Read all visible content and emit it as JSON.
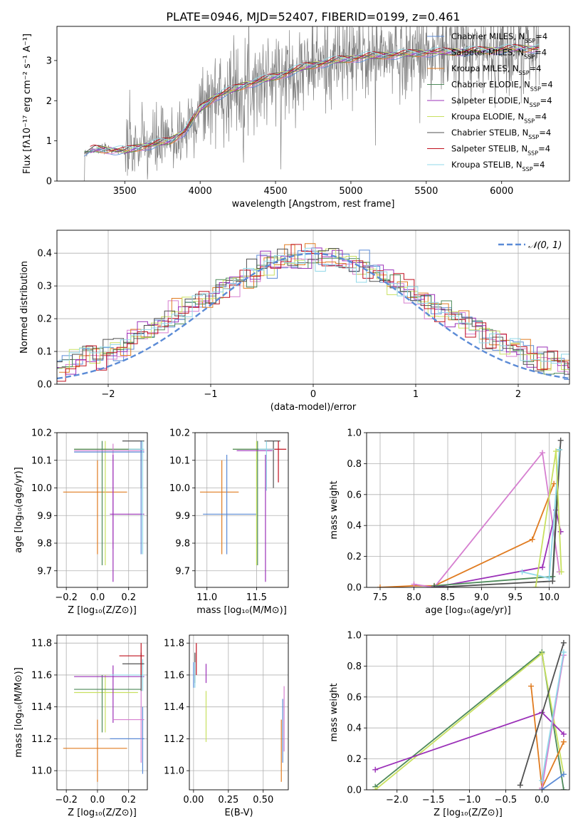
{
  "figure_title": "PLATE=0946, MJD=52407, FIBERID=0199, z=0.461",
  "colors": {
    "Chabrier MILES": "#5b8bd6",
    "Salpeter MILES": "#d67fd0",
    "Kroupa MILES": "#e07b20",
    "Chabrier ELODIE": "#4d8a5a",
    "Salpeter ELODIE": "#9b30b8",
    "Kroupa ELODIE": "#c8e060",
    "Chabrier STELIB": "#505050",
    "Salpeter STELIB": "#c0101e",
    "Kroupa STELIB": "#90d8e8",
    "gauss": "#5b8bd6",
    "data": "#808080"
  },
  "chart_data": [
    {
      "id": "spectrum",
      "type": "line",
      "title": "PLATE=0946, MJD=52407, FIBERID=0199, z=0.461",
      "xlabel": "wavelength [Angstrom, rest frame]",
      "ylabel": "Flux [fλ10⁻¹⁷ erg cm⁻² s⁻¹ A⁻¹]",
      "xlim": [
        3050,
        6450
      ],
      "ylim": [
        0,
        3.85
      ],
      "xticks": [
        3500,
        4000,
        4500,
        5000,
        5500,
        6000
      ],
      "yticks": [
        0,
        1,
        2,
        3
      ],
      "grid": false,
      "legend_position": "top-right",
      "legend": [
        {
          "label": "Chabrier MILES, N",
          "sub": "SSP",
          "tail": "=4"
        },
        {
          "label": "Salpeter MILES, N",
          "sub": "SSP",
          "tail": "=4"
        },
        {
          "label": "Kroupa MILES, N",
          "sub": "SSP",
          "tail": "=4"
        },
        {
          "label": "Chabrier ELODIE, N",
          "sub": "SSP",
          "tail": "=4"
        },
        {
          "label": "Salpeter ELODIE, N",
          "sub": "SSP",
          "tail": "=4"
        },
        {
          "label": "Kroupa ELODIE, N",
          "sub": "SSP",
          "tail": "=4"
        },
        {
          "label": "Chabrier STELIB, N",
          "sub": "SSP",
          "tail": "=4"
        },
        {
          "label": "Salpeter STELIB, N",
          "sub": "SSP",
          "tail": "=4"
        },
        {
          "label": "Kroupa STELIB, N",
          "sub": "SSP",
          "tail": "=4"
        }
      ],
      "model_trend": {
        "x": [
          3220,
          3300,
          3400,
          3500,
          3600,
          3700,
          3800,
          3900,
          4000,
          4100,
          4300,
          4500,
          4700,
          4900,
          5100,
          5300,
          5500,
          5700,
          5900,
          6100,
          6250
        ],
        "y": [
          0.7,
          0.8,
          0.78,
          0.75,
          0.85,
          0.92,
          1.0,
          1.25,
          1.8,
          2.1,
          2.4,
          2.6,
          2.85,
          3.0,
          3.1,
          3.15,
          3.2,
          3.22,
          3.25,
          3.3,
          3.3
        ]
      }
    },
    {
      "id": "residuals",
      "type": "histogram",
      "xlabel": "(data-model)/error",
      "ylabel": "Normed distribution",
      "xlim": [
        -2.5,
        2.5
      ],
      "ylim": [
        0,
        0.47
      ],
      "xticks": [
        -2,
        -1,
        0,
        1,
        2
      ],
      "yticks": [
        0.0,
        0.1,
        0.2,
        0.3,
        0.4
      ],
      "grid": true,
      "legend_position": "top-right",
      "legend": [
        {
          "label": "𝒩(0, 1)"
        }
      ],
      "bin_width": 0.1,
      "reference_curve": "normal(0,1)"
    },
    {
      "id": "age_vs_Z",
      "type": "scatter",
      "xlabel": "Z [log₁₀(Z/Z⊙)]",
      "ylabel": "age  [log₁₀(age/yr)]",
      "xlim": [
        -0.26,
        0.32
      ],
      "ylim": [
        9.64,
        10.2
      ],
      "xticks": [
        -0.2,
        0.0,
        0.2
      ],
      "yticks": [
        9.7,
        9.8,
        9.9,
        10.0,
        10.1,
        10.2
      ],
      "grid": true,
      "points": [
        {
          "s": "Kroupa MILES",
          "x": 0.0,
          "y": 9.985,
          "xe": [
            -0.22,
            0.19
          ],
          "ye": [
            9.76,
            10.1
          ]
        },
        {
          "s": "Kroupa ELODIE",
          "x": 0.05,
          "y": 10.14,
          "xe": [
            -0.15,
            0.29
          ],
          "ye": [
            9.72,
            10.17
          ]
        },
        {
          "s": "Chabrier ELODIE",
          "x": 0.03,
          "y": 10.14,
          "xe": [
            -0.15,
            0.29
          ],
          "ye": [
            9.72,
            10.17
          ]
        },
        {
          "s": "Salpeter MILES",
          "x": 0.1,
          "y": 10.135,
          "xe": [
            -0.15,
            0.3
          ],
          "ye": [
            9.78,
            10.16
          ]
        },
        {
          "s": "Salpeter ELODIE",
          "x": 0.1,
          "y": 9.905,
          "xe": [
            0.08,
            0.3
          ],
          "ye": [
            9.66,
            10.12
          ]
        },
        {
          "s": "Chabrier STELIB",
          "x": 0.28,
          "y": 10.17,
          "xe": [
            0.16,
            0.3
          ],
          "ye": [
            10.0,
            10.17
          ]
        },
        {
          "s": "Chabrier MILES",
          "x": 0.28,
          "y": 10.13,
          "xe": [
            -0.15,
            0.3
          ],
          "ye": [
            9.76,
            10.17
          ]
        },
        {
          "s": "Kroupa STELIB",
          "x": 0.29,
          "y": 10.14,
          "xe": [
            0.2,
            0.3
          ],
          "ye": [
            9.76,
            10.17
          ]
        }
      ]
    },
    {
      "id": "age_vs_mass",
      "type": "scatter",
      "xlabel": "mass [log₁₀(M/M⊙)]",
      "ylabel": "",
      "xlim": [
        10.88,
        11.82
      ],
      "ylim": [
        9.64,
        10.2
      ],
      "xticks": [
        11.0,
        11.5
      ],
      "yticks": [
        9.7,
        9.8,
        9.9,
        10.0,
        10.1,
        10.2
      ],
      "grid": true,
      "points": [
        {
          "s": "Kroupa MILES",
          "x": 11.15,
          "y": 9.985,
          "xe": [
            10.93,
            11.32
          ],
          "ye": [
            9.76,
            10.1
          ]
        },
        {
          "s": "Chabrier MILES",
          "x": 11.2,
          "y": 9.905,
          "xe": [
            10.96,
            11.5
          ],
          "ye": [
            9.76,
            10.12
          ]
        },
        {
          "s": "Kroupa ELODIE",
          "x": 11.5,
          "y": 10.14,
          "xe": [
            11.26,
            11.62
          ],
          "ye": [
            9.72,
            10.17
          ]
        },
        {
          "s": "Chabrier ELODIE",
          "x": 11.51,
          "y": 10.14,
          "xe": [
            11.26,
            11.62
          ],
          "ye": [
            9.72,
            10.17
          ]
        },
        {
          "s": "Salpeter ELODIE",
          "x": 11.59,
          "y": 10.135,
          "xe": [
            11.3,
            11.66
          ],
          "ye": [
            9.66,
            10.12
          ]
        },
        {
          "s": "Chabrier STELIB",
          "x": 11.67,
          "y": 10.17,
          "xe": [
            11.58,
            11.74
          ],
          "ye": [
            10.0,
            10.17
          ]
        },
        {
          "s": "Salpeter STELIB",
          "x": 11.72,
          "y": 10.14,
          "xe": [
            11.62,
            11.8
          ],
          "ye": [
            10.02,
            10.17
          ]
        },
        {
          "s": "Kroupa STELIB",
          "x": 11.6,
          "y": 10.14,
          "xe": [
            11.52,
            11.68
          ],
          "ye": [
            9.99,
            10.17
          ]
        }
      ]
    },
    {
      "id": "weight_vs_age",
      "type": "line",
      "xlabel": "age  [log₁₀(age/yr)]",
      "ylabel": "mass weight",
      "xlim": [
        7.3,
        10.3
      ],
      "ylim": [
        0,
        1
      ],
      "xticks": [
        7.5,
        8.0,
        8.5,
        9.0,
        9.5,
        10.0
      ],
      "yticks": [
        0.0,
        0.2,
        0.4,
        0.6,
        0.8,
        1.0
      ],
      "grid": true,
      "series": [
        {
          "s": "Kroupa MILES",
          "x": [
            7.5,
            8.0,
            8.3,
            9.75,
            10.07
          ],
          "y": [
            0.0,
            0.01,
            0.01,
            0.31,
            0.67
          ]
        },
        {
          "s": "Salpeter MILES",
          "x": [
            8.0,
            8.3,
            9.9,
            10.15
          ],
          "y": [
            0.02,
            0.0,
            0.87,
            0.1
          ]
        },
        {
          "s": "Salpeter ELODIE",
          "x": [
            8.3,
            9.9,
            10.1,
            10.17
          ],
          "y": [
            0.0,
            0.13,
            0.5,
            0.36
          ]
        },
        {
          "s": "Chabrier ELODIE",
          "x": [
            8.3,
            10.05,
            10.15
          ],
          "y": [
            0.01,
            0.07,
            0.89
          ]
        },
        {
          "s": "Chabrier STELIB",
          "x": [
            8.3,
            10.05,
            10.17
          ],
          "y": [
            0.0,
            0.04,
            0.95
          ]
        },
        {
          "s": "Kroupa STELIB",
          "x": [
            9.6,
            10.0,
            10.15
          ],
          "y": [
            0.1,
            0.06,
            0.89
          ]
        },
        {
          "s": "Kroupa ELODIE",
          "x": [
            9.8,
            10.1,
            10.18
          ],
          "y": [
            0.0,
            0.88,
            0.1
          ]
        }
      ]
    },
    {
      "id": "mass_vs_Z",
      "type": "scatter",
      "xlabel": "Z [log₁₀(Z/Z⊙)]",
      "ylabel": "mass [log₁₀(M/M⊙)]",
      "xlim": [
        -0.26,
        0.32
      ],
      "ylim": [
        10.88,
        11.85
      ],
      "xticks": [
        -0.2,
        0.0,
        0.2
      ],
      "yticks": [
        11.0,
        11.2,
        11.4,
        11.6,
        11.8
      ],
      "grid": true,
      "points": [
        {
          "s": "Kroupa MILES",
          "x": 0.0,
          "y": 11.14,
          "xe": [
            -0.22,
            0.19
          ],
          "ye": [
            10.93,
            11.32
          ]
        },
        {
          "s": "Chabrier MILES",
          "x": 0.29,
          "y": 11.2,
          "xe": [
            0.08,
            0.3
          ],
          "ye": [
            10.98,
            11.4
          ]
        },
        {
          "s": "Kroupa ELODIE",
          "x": 0.05,
          "y": 11.49,
          "xe": [
            -0.15,
            0.26
          ],
          "ye": [
            11.24,
            11.6
          ]
        },
        {
          "s": "Chabrier ELODIE",
          "x": 0.03,
          "y": 11.51,
          "xe": [
            -0.15,
            0.28
          ],
          "ye": [
            11.24,
            11.6
          ]
        },
        {
          "s": "Salpeter ELODIE",
          "x": 0.1,
          "y": 11.59,
          "xe": [
            -0.15,
            0.3
          ],
          "ye": [
            11.3,
            11.66
          ]
        },
        {
          "s": "Salpeter MILES",
          "x": 0.28,
          "y": 11.32,
          "xe": [
            0.1,
            0.3
          ],
          "ye": [
            11.05,
            11.6
          ]
        },
        {
          "s": "Kroupa STELIB",
          "x": 0.29,
          "y": 11.6,
          "xe": [
            0.08,
            0.3
          ],
          "ye": [
            11.5,
            11.7
          ]
        },
        {
          "s": "Chabrier STELIB",
          "x": 0.28,
          "y": 11.67,
          "xe": [
            0.16,
            0.3
          ],
          "ye": [
            11.5,
            11.74
          ]
        },
        {
          "s": "Salpeter STELIB",
          "x": 0.28,
          "y": 11.72,
          "xe": [
            0.14,
            0.3
          ],
          "ye": [
            11.6,
            11.8
          ]
        }
      ]
    },
    {
      "id": "mass_vs_EBV",
      "type": "scatter",
      "xlabel": "E(B-V)",
      "ylabel": "",
      "xlim": [
        -0.03,
        0.68
      ],
      "ylim": [
        10.88,
        11.85
      ],
      "xticks": [
        0.0,
        0.25,
        0.5
      ],
      "yticks": [
        11.0,
        11.2,
        11.4,
        11.6,
        11.8
      ],
      "grid": true,
      "points": [
        {
          "s": "Chabrier MILES",
          "x": 0.0,
          "y": 11.6,
          "xe": [
            0.0,
            0.0
          ],
          "ye": [
            11.52,
            11.68
          ]
        },
        {
          "s": "Salpeter STELIB",
          "x": 0.02,
          "y": 11.72,
          "xe": [
            0.02,
            0.02
          ],
          "ye": [
            11.6,
            11.8
          ]
        },
        {
          "s": "Chabrier STELIB",
          "x": 0.01,
          "y": 11.67,
          "xe": [
            0.01,
            0.01
          ],
          "ye": [
            11.55,
            11.74
          ]
        },
        {
          "s": "Salpeter ELODIE",
          "x": 0.09,
          "y": 11.62,
          "xe": [
            0.09,
            0.09
          ],
          "ye": [
            11.55,
            11.67
          ]
        },
        {
          "s": "Kroupa ELODIE",
          "x": 0.09,
          "y": 11.4,
          "xe": [
            0.09,
            0.09
          ],
          "ye": [
            11.18,
            11.5
          ]
        },
        {
          "s": "Kroupa STELIB",
          "x": 0.01,
          "y": 11.6,
          "xe": [
            0.01,
            0.01
          ],
          "ye": [
            11.52,
            11.68
          ]
        },
        {
          "s": "Kroupa MILES",
          "x": 0.63,
          "y": 11.14,
          "xe": [
            0.63,
            0.63
          ],
          "ye": [
            10.93,
            11.32
          ]
        },
        {
          "s": "Chabrier MILES",
          "x": 0.64,
          "y": 11.25,
          "xe": [
            0.64,
            0.64
          ],
          "ye": [
            11.05,
            11.45
          ]
        },
        {
          "s": "Salpeter MILES",
          "x": 0.65,
          "y": 11.35,
          "xe": [
            0.65,
            0.65
          ],
          "ye": [
            11.12,
            11.53
          ]
        }
      ]
    },
    {
      "id": "weight_vs_Z",
      "type": "line",
      "xlabel": "Z [log₁₀(Z/Z⊙)]",
      "ylabel": "mass weight",
      "xlim": [
        -2.42,
        0.38
      ],
      "ylim": [
        0,
        1
      ],
      "xticks": [
        -2.0,
        -1.5,
        -1.0,
        -0.5,
        0.0
      ],
      "yticks": [
        0.0,
        0.2,
        0.4,
        0.6,
        0.8,
        1.0
      ],
      "grid": true,
      "series": [
        {
          "s": "Chabrier ELODIE",
          "x": [
            -2.3,
            0.0,
            0.3
          ],
          "y": [
            0.02,
            0.89,
            0.0
          ]
        },
        {
          "s": "Kroupa ELODIE",
          "x": [
            -2.3,
            0.0,
            0.3
          ],
          "y": [
            0.0,
            0.88,
            0.1
          ]
        },
        {
          "s": "Salpeter ELODIE",
          "x": [
            -2.3,
            0.0,
            0.3
          ],
          "y": [
            0.13,
            0.5,
            0.36
          ]
        },
        {
          "s": "Kroupa MILES",
          "x": [
            -0.15,
            0.0,
            0.3
          ],
          "y": [
            0.67,
            0.01,
            0.31
          ]
        },
        {
          "s": "Chabrier STELIB",
          "x": [
            -0.3,
            0.3
          ],
          "y": [
            0.03,
            0.95
          ]
        },
        {
          "s": "Salpeter MILES",
          "x": [
            0.0,
            0.3
          ],
          "y": [
            0.01,
            0.87
          ]
        },
        {
          "s": "Kroupa STELIB",
          "x": [
            0.0,
            0.3
          ],
          "y": [
            0.06,
            0.89
          ]
        },
        {
          "s": "Chabrier MILES",
          "x": [
            0.0,
            0.3
          ],
          "y": [
            0.0,
            0.1
          ]
        }
      ]
    }
  ]
}
